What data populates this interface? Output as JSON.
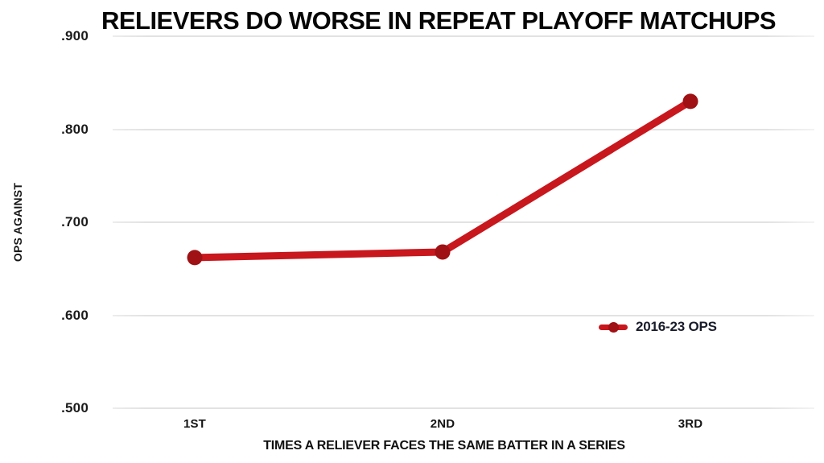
{
  "page": {
    "background": "#ffffff"
  },
  "chart_data": {
    "type": "line",
    "title": "RELIEVERS DO WORSE IN REPEAT PLAYOFF MATCHUPS",
    "xlabel": "TIMES A RELIEVER FACES THE SAME BATTER IN A SERIES",
    "ylabel": "OPS AGAINST",
    "categories": [
      "1ST",
      "2ND",
      "3RD"
    ],
    "series": [
      {
        "name": "2016-23 OPS",
        "values": [
          0.662,
          0.668,
          0.83
        ]
      }
    ],
    "ylim": [
      0.5,
      0.9
    ],
    "yticks": [
      {
        "value": 0.9,
        "label": ".900"
      },
      {
        "value": 0.8,
        "label": ".800"
      },
      {
        "value": 0.7,
        "label": ".700"
      },
      {
        "value": 0.6,
        "label": ".600"
      },
      {
        "value": 0.5,
        "label": ".500"
      }
    ],
    "grid": "horizontal",
    "legend_position": "middle-right",
    "colors": {
      "line": "#c8171d",
      "marker": "#9f1114",
      "grid": "#e2e2e2",
      "title_text": "#060606",
      "legend_text": "#191c2b"
    }
  },
  "legend": {
    "label": "2016-23 OPS"
  }
}
